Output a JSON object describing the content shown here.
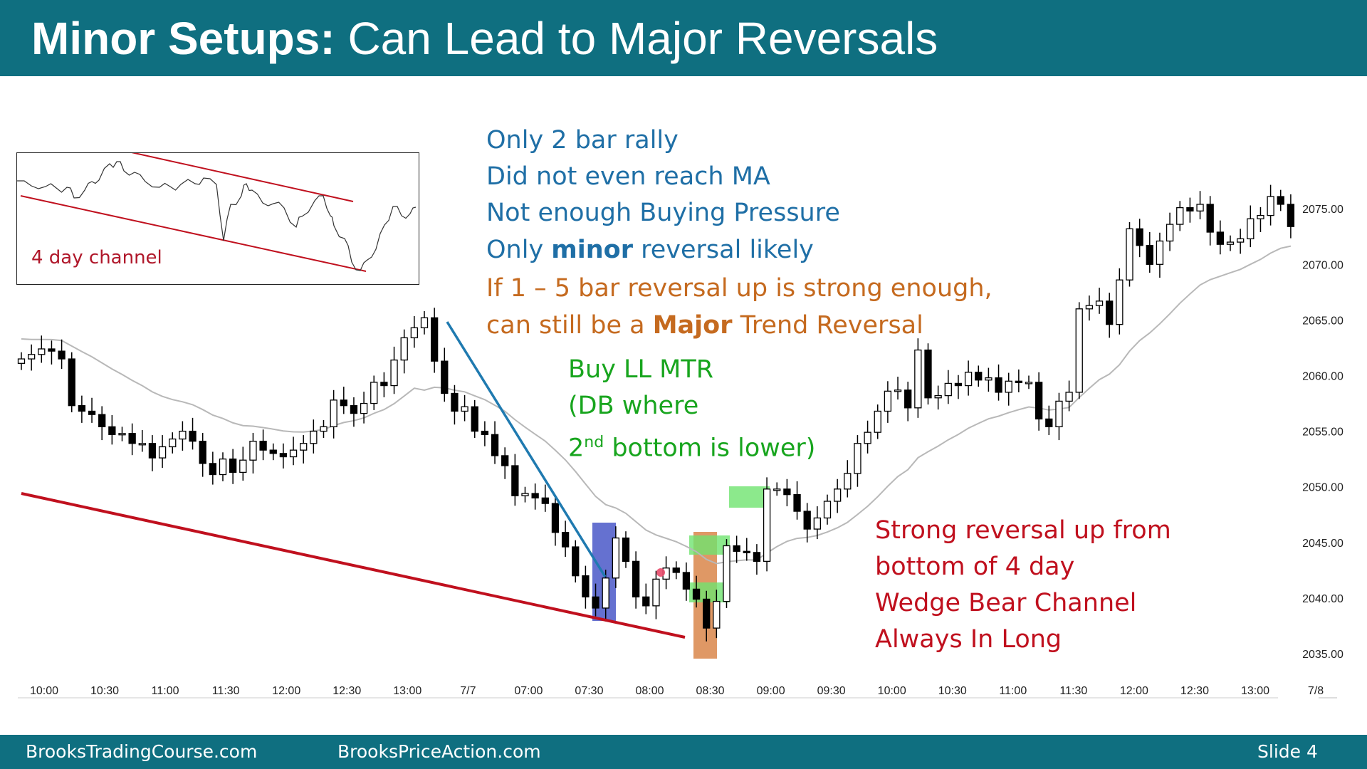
{
  "title": {
    "bold": "Minor Setups:",
    "rest": " Can Lead to Major Reversals"
  },
  "footer": {
    "left": "BrooksTradingCourse.com",
    "center": "BrooksPriceAction.com",
    "slide": "Slide  4"
  },
  "inset": {
    "label": "4 day channel"
  },
  "notes_blue": [
    "Only 2 bar rally",
    "Did not even reach MA",
    "Not enough Buying Pressure"
  ],
  "notes_blue_last": {
    "pre": "Only ",
    "bold": "minor",
    "post": " reversal likely"
  },
  "notes_orange": {
    "line1": "If 1 – 5 bar reversal up is strong enough,",
    "line2_pre": "can still be a ",
    "line2_bold": "Major",
    "line2_post": " Trend Reversal"
  },
  "notes_green": {
    "line1": "Buy LL MTR",
    "line2": "(DB where",
    "line3_num": "2",
    "line3_sup": "nd",
    "line3_rest": " bottom is lower)"
  },
  "notes_red": [
    "Strong reversal up from",
    "bottom of 4 day",
    "Wedge Bear Channel",
    "Always In Long"
  ],
  "colors": {
    "header": "#0f6f80",
    "trendline": "#c0101e",
    "bear_line": "#1f7ab0",
    "ma": "#b8b8b8",
    "highlight_blue": "#4a58c8",
    "highlight_orange": "#d9864a",
    "highlight_green": "#6fe36f"
  },
  "chart_data": {
    "type": "candlestick",
    "y_axis": {
      "ticks": [
        "2035.00",
        "2040.00",
        "2045.00",
        "2050.00",
        "2055.00",
        "2060.00",
        "2065.00",
        "2070.00",
        "2075.00"
      ],
      "range": [
        2032,
        2078
      ]
    },
    "x_axis": {
      "ticks": [
        "10:00",
        "10:30",
        "11:00",
        "11:30",
        "12:00",
        "12:30",
        "13:00",
        "7/7",
        "07:00",
        "07:30",
        "08:00",
        "08:30",
        "09:00",
        "09:30",
        "10:00",
        "10:30",
        "11:00",
        "11:30",
        "12:00",
        "12:30",
        "13:00",
        "7/8"
      ]
    },
    "close_path": [
      2061.5,
      2061.9,
      2062.4,
      2062.2,
      2061.5,
      2057.3,
      2056.8,
      2056.5,
      2055.4,
      2054.7,
      2054.8,
      2053.9,
      2053.9,
      2052.6,
      2053.6,
      2054.3,
      2055.0,
      2054.1,
      2052.1,
      2051.1,
      2052.5,
      2051.3,
      2052.4,
      2054.1,
      2053.3,
      2053.0,
      2052.7,
      2053.3,
      2053.9,
      2055.0,
      2055.4,
      2057.8,
      2057.3,
      2056.6,
      2057.5,
      2059.4,
      2059.1,
      2061.4,
      2063.4,
      2064.3,
      2065.2,
      2061.3,
      2058.4,
      2056.8,
      2057.2,
      2055.0,
      2054.7,
      2052.8,
      2051.9,
      2049.2,
      2049.4,
      2049.0,
      2048.5,
      2045.9,
      2044.6,
      2042.0,
      2040.1,
      2039.1,
      2041.8,
      2045.4,
      2043.3,
      2040.1,
      2039.3,
      2041.7,
      2042.7,
      2042.3,
      2040.8,
      2039.9,
      2037.3,
      2039.7,
      2044.7,
      2044.2,
      2044.1,
      2043.3,
      2049.8,
      2049.8,
      2049.3,
      2047.8,
      2046.2,
      2047.2,
      2048.7,
      2049.8,
      2051.2,
      2053.9,
      2054.9,
      2056.8,
      2058.6,
      2058.7,
      2057.1,
      2062.3,
      2058.0,
      2058.2,
      2059.3,
      2059.1,
      2060.3,
      2059.6,
      2059.8,
      2058.5,
      2059.5,
      2059.4,
      2059.4,
      2056.1,
      2055.4,
      2057.7,
      2058.5,
      2066.0,
      2066.3,
      2066.7,
      2064.6,
      2068.6,
      2073.2,
      2071.7,
      2070.0,
      2072.1,
      2073.6,
      2075.1,
      2074.8,
      2075.4,
      2072.9,
      2071.8,
      2072.0,
      2072.3,
      2074.1,
      2074.4,
      2076.1,
      2075.4,
      2073.4
    ],
    "series": [
      {
        "name": "MA"
      }
    ],
    "annotations": [
      "4 day channel",
      "Buy LL MTR"
    ]
  }
}
